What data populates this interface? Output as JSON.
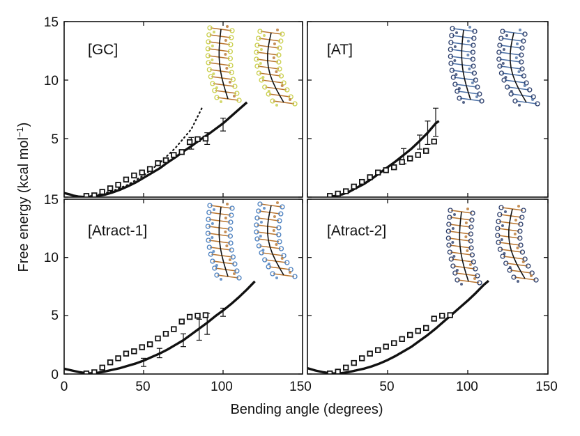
{
  "chart_data": {
    "type": "line",
    "xlabel": "Bending angle (degrees)",
    "ylabel": "Free energy (kcal mol",
    "ylabel_sup": "−1",
    "ylabel_close": ")",
    "xlim": [
      0,
      150
    ],
    "ylim": [
      0,
      15
    ],
    "xticks": [
      0,
      50,
      100,
      150
    ],
    "xtick_labels": [
      "0",
      "50",
      "100",
      "150"
    ],
    "yticks": [
      0,
      5,
      10,
      15
    ],
    "ytick_labels": [
      "0",
      "5",
      "10",
      "15"
    ],
    "grid": false,
    "panels": [
      {
        "label": "[GC]",
        "inset_colors": [
          "#b8742e",
          "#c9cf4a"
        ],
        "curve": [
          [
            0,
            0.35
          ],
          [
            3,
            0.25
          ],
          [
            6,
            0.12
          ],
          [
            9,
            0.05
          ],
          [
            12,
            0.02
          ],
          [
            15,
            0.02
          ],
          [
            18,
            0.05
          ],
          [
            22,
            0.12
          ],
          [
            26,
            0.22
          ],
          [
            30,
            0.38
          ],
          [
            35,
            0.62
          ],
          [
            40,
            0.92
          ],
          [
            45,
            1.25
          ],
          [
            50,
            1.65
          ],
          [
            55,
            2.05
          ],
          [
            60,
            2.45
          ],
          [
            65,
            2.95
          ],
          [
            70,
            3.4
          ],
          [
            75,
            3.9
          ],
          [
            80,
            4.35
          ],
          [
            85,
            4.85
          ],
          [
            90,
            5.3
          ],
          [
            95,
            5.8
          ],
          [
            100,
            6.3
          ],
          [
            105,
            6.9
          ],
          [
            110,
            7.5
          ],
          [
            115,
            8.1
          ]
        ],
        "dotted": [
          [
            14,
            0.05
          ],
          [
            20,
            0.15
          ],
          [
            30,
            0.5
          ],
          [
            40,
            1.05
          ],
          [
            50,
            1.85
          ],
          [
            60,
            2.9
          ],
          [
            70,
            4.2
          ],
          [
            80,
            5.8
          ],
          [
            87,
            7.7
          ]
        ],
        "squares": [
          [
            14,
            0.1
          ],
          [
            19,
            0.15
          ],
          [
            24,
            0.45
          ],
          [
            29,
            0.75
          ],
          [
            34,
            1.05
          ],
          [
            39,
            1.5
          ],
          [
            44,
            1.85
          ],
          [
            49,
            2.1
          ],
          [
            54,
            2.4
          ],
          [
            59,
            2.9
          ],
          [
            64,
            3.15
          ],
          [
            69,
            3.6
          ],
          [
            74,
            3.85
          ],
          [
            79,
            4.7
          ],
          [
            84,
            4.95
          ],
          [
            89,
            5.0
          ]
        ],
        "errorbars": [
          [
            80,
            4.6,
            0.5
          ],
          [
            90,
            5.0,
            0.5
          ],
          [
            100,
            6.2,
            0.55
          ]
        ]
      },
      {
        "label": "[AT]",
        "inset_colors": [
          "#4a6fa5",
          "#2c3e6b"
        ],
        "curve": [
          [
            14,
            0.05
          ],
          [
            18,
            0.1
          ],
          [
            22,
            0.25
          ],
          [
            26,
            0.45
          ],
          [
            30,
            0.75
          ],
          [
            35,
            1.1
          ],
          [
            40,
            1.55
          ],
          [
            45,
            2.05
          ],
          [
            50,
            2.55
          ],
          [
            55,
            3.05
          ],
          [
            60,
            3.6
          ],
          [
            65,
            4.15
          ],
          [
            70,
            4.8
          ],
          [
            75,
            5.5
          ],
          [
            80,
            6.3
          ],
          [
            82,
            6.5
          ]
        ],
        "dotted": [],
        "squares": [
          [
            14,
            0.1
          ],
          [
            19,
            0.3
          ],
          [
            24,
            0.5
          ],
          [
            29,
            0.9
          ],
          [
            34,
            1.3
          ],
          [
            39,
            1.7
          ],
          [
            44,
            2.1
          ],
          [
            49,
            2.3
          ],
          [
            54,
            2.55
          ],
          [
            59,
            3.0
          ],
          [
            64,
            3.3
          ],
          [
            69,
            3.6
          ],
          [
            74,
            3.95
          ],
          [
            79,
            4.75
          ]
        ],
        "errorbars": [
          [
            60,
            3.5,
            0.65
          ],
          [
            70,
            4.7,
            0.6
          ],
          [
            75,
            5.5,
            1.0
          ],
          [
            80,
            6.4,
            1.2
          ]
        ]
      },
      {
        "label": "[Atract-1]",
        "inset_colors": [
          "#b8742e",
          "#4a7fbf"
        ],
        "curve": [
          [
            0,
            0.45
          ],
          [
            5,
            0.3
          ],
          [
            10,
            0.15
          ],
          [
            15,
            0.05
          ],
          [
            20,
            0.08
          ],
          [
            25,
            0.2
          ],
          [
            30,
            0.35
          ],
          [
            35,
            0.5
          ],
          [
            40,
            0.7
          ],
          [
            45,
            0.9
          ],
          [
            50,
            1.15
          ],
          [
            55,
            1.45
          ],
          [
            60,
            1.75
          ],
          [
            65,
            2.1
          ],
          [
            70,
            2.5
          ],
          [
            75,
            2.9
          ],
          [
            80,
            3.4
          ],
          [
            85,
            3.9
          ],
          [
            90,
            4.4
          ],
          [
            95,
            4.95
          ],
          [
            100,
            5.45
          ],
          [
            105,
            6.0
          ],
          [
            110,
            6.6
          ],
          [
            115,
            7.25
          ],
          [
            120,
            7.95
          ]
        ],
        "dotted": [],
        "squares": [
          [
            14,
            0.05
          ],
          [
            19,
            0.15
          ],
          [
            24,
            0.55
          ],
          [
            29,
            1.0
          ],
          [
            34,
            1.35
          ],
          [
            39,
            1.75
          ],
          [
            44,
            1.95
          ],
          [
            49,
            2.3
          ],
          [
            54,
            2.55
          ],
          [
            59,
            3.05
          ],
          [
            64,
            3.45
          ],
          [
            69,
            3.85
          ],
          [
            74,
            4.5
          ],
          [
            79,
            4.9
          ],
          [
            84,
            5.0
          ],
          [
            89,
            5.05
          ]
        ],
        "errorbars": [
          [
            50,
            1.0,
            0.35
          ],
          [
            60,
            1.8,
            0.4
          ],
          [
            75,
            2.9,
            0.55
          ],
          [
            85,
            3.8,
            0.9
          ],
          [
            90,
            4.3,
            0.9
          ],
          [
            100,
            5.3,
            0.35
          ]
        ]
      },
      {
        "label": "[Atract-2]",
        "inset_colors": [
          "#b8742e",
          "#2c3e6b"
        ],
        "curve": [
          [
            0,
            0.5
          ],
          [
            5,
            0.3
          ],
          [
            10,
            0.15
          ],
          [
            15,
            0.05
          ],
          [
            20,
            0.05
          ],
          [
            25,
            0.15
          ],
          [
            30,
            0.3
          ],
          [
            35,
            0.45
          ],
          [
            40,
            0.65
          ],
          [
            45,
            0.9
          ],
          [
            50,
            1.2
          ],
          [
            55,
            1.55
          ],
          [
            60,
            1.95
          ],
          [
            65,
            2.35
          ],
          [
            70,
            2.85
          ],
          [
            75,
            3.35
          ],
          [
            80,
            3.9
          ],
          [
            85,
            4.5
          ],
          [
            90,
            5.1
          ],
          [
            95,
            5.7
          ],
          [
            100,
            6.3
          ],
          [
            105,
            6.95
          ],
          [
            110,
            7.65
          ],
          [
            113,
            8.0
          ]
        ],
        "dotted": [],
        "squares": [
          [
            14,
            0.05
          ],
          [
            19,
            0.2
          ],
          [
            24,
            0.55
          ],
          [
            29,
            0.95
          ],
          [
            34,
            1.35
          ],
          [
            39,
            1.75
          ],
          [
            44,
            2.05
          ],
          [
            49,
            2.35
          ],
          [
            54,
            2.65
          ],
          [
            59,
            3.0
          ],
          [
            64,
            3.35
          ],
          [
            69,
            3.7
          ],
          [
            74,
            3.95
          ],
          [
            79,
            4.75
          ],
          [
            84,
            5.0
          ],
          [
            89,
            5.05
          ]
        ],
        "errorbars": []
      }
    ]
  }
}
